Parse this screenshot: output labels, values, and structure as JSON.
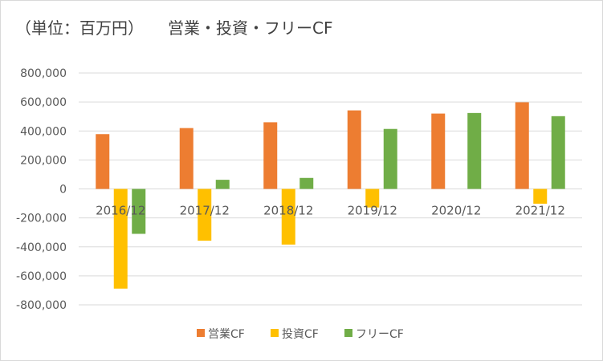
{
  "chart_data": {
    "type": "bar",
    "title": "（単位：百万円）　　営業・投資・フリーCF",
    "categories": [
      "2016/12",
      "2017/12",
      "2018/12",
      "2019/12",
      "2020/12",
      "2021/12"
    ],
    "series": [
      {
        "name": "営業CF",
        "color": "#ED7D31",
        "values": [
          378000,
          420000,
          460000,
          542000,
          520000,
          598000
        ]
      },
      {
        "name": "投資CF",
        "color": "#FFC000",
        "values": [
          -688000,
          -357000,
          -384000,
          -128000,
          0,
          -102000
        ]
      },
      {
        "name": "フリーCF",
        "color": "#70AD47",
        "values": [
          -310000,
          63000,
          76000,
          414000,
          524000,
          502000
        ]
      }
    ],
    "ylim": [
      -800000,
      800000
    ],
    "yticks": [
      "800,000",
      "600,000",
      "400,000",
      "200,000",
      "0",
      "-200,000",
      "-400,000",
      "-600,000",
      "-800,000"
    ],
    "grid": true,
    "legend": "bottom"
  }
}
